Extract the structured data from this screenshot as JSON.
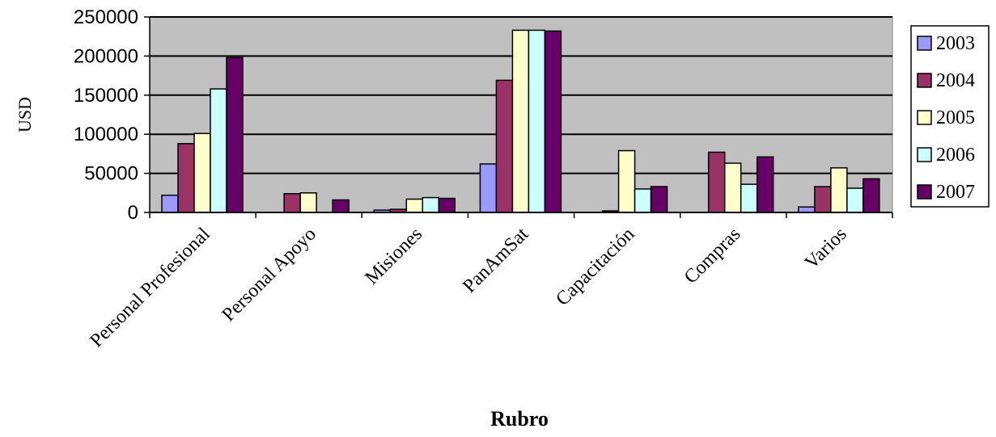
{
  "chart_data": {
    "type": "bar",
    "title": "",
    "xlabel": "Rubro",
    "ylabel": "USD",
    "ylim": [
      0,
      250000
    ],
    "yticks": [
      0,
      50000,
      100000,
      150000,
      200000,
      250000
    ],
    "ytick_labels": [
      "0",
      "50000",
      "100000",
      "150000",
      "200000",
      "250000"
    ],
    "categories": [
      "Personal Profesional",
      "Personal Apoyo",
      "Misiones",
      "PanAmSat",
      "Capacitación",
      "Compras",
      "Varios"
    ],
    "series": [
      {
        "name": "2003",
        "color": "#9999FF",
        "values": [
          22000,
          0,
          3000,
          62000,
          0,
          0,
          7000
        ]
      },
      {
        "name": "2004",
        "color": "#993366",
        "values": [
          88000,
          24000,
          4000,
          169000,
          2000,
          77000,
          33000
        ]
      },
      {
        "name": "2005",
        "color": "#FFFFCC",
        "values": [
          101000,
          25000,
          17000,
          233000,
          79000,
          63000,
          57000
        ]
      },
      {
        "name": "2006",
        "color": "#CCFFFF",
        "values": [
          158000,
          0,
          19000,
          233000,
          30000,
          36000,
          31000
        ]
      },
      {
        "name": "2007",
        "color": "#660066",
        "values": [
          198000,
          16000,
          18000,
          232000,
          33000,
          71000,
          43000
        ]
      }
    ],
    "grid": true,
    "legend_position": "right",
    "plot_background": "#C0C0C0"
  }
}
